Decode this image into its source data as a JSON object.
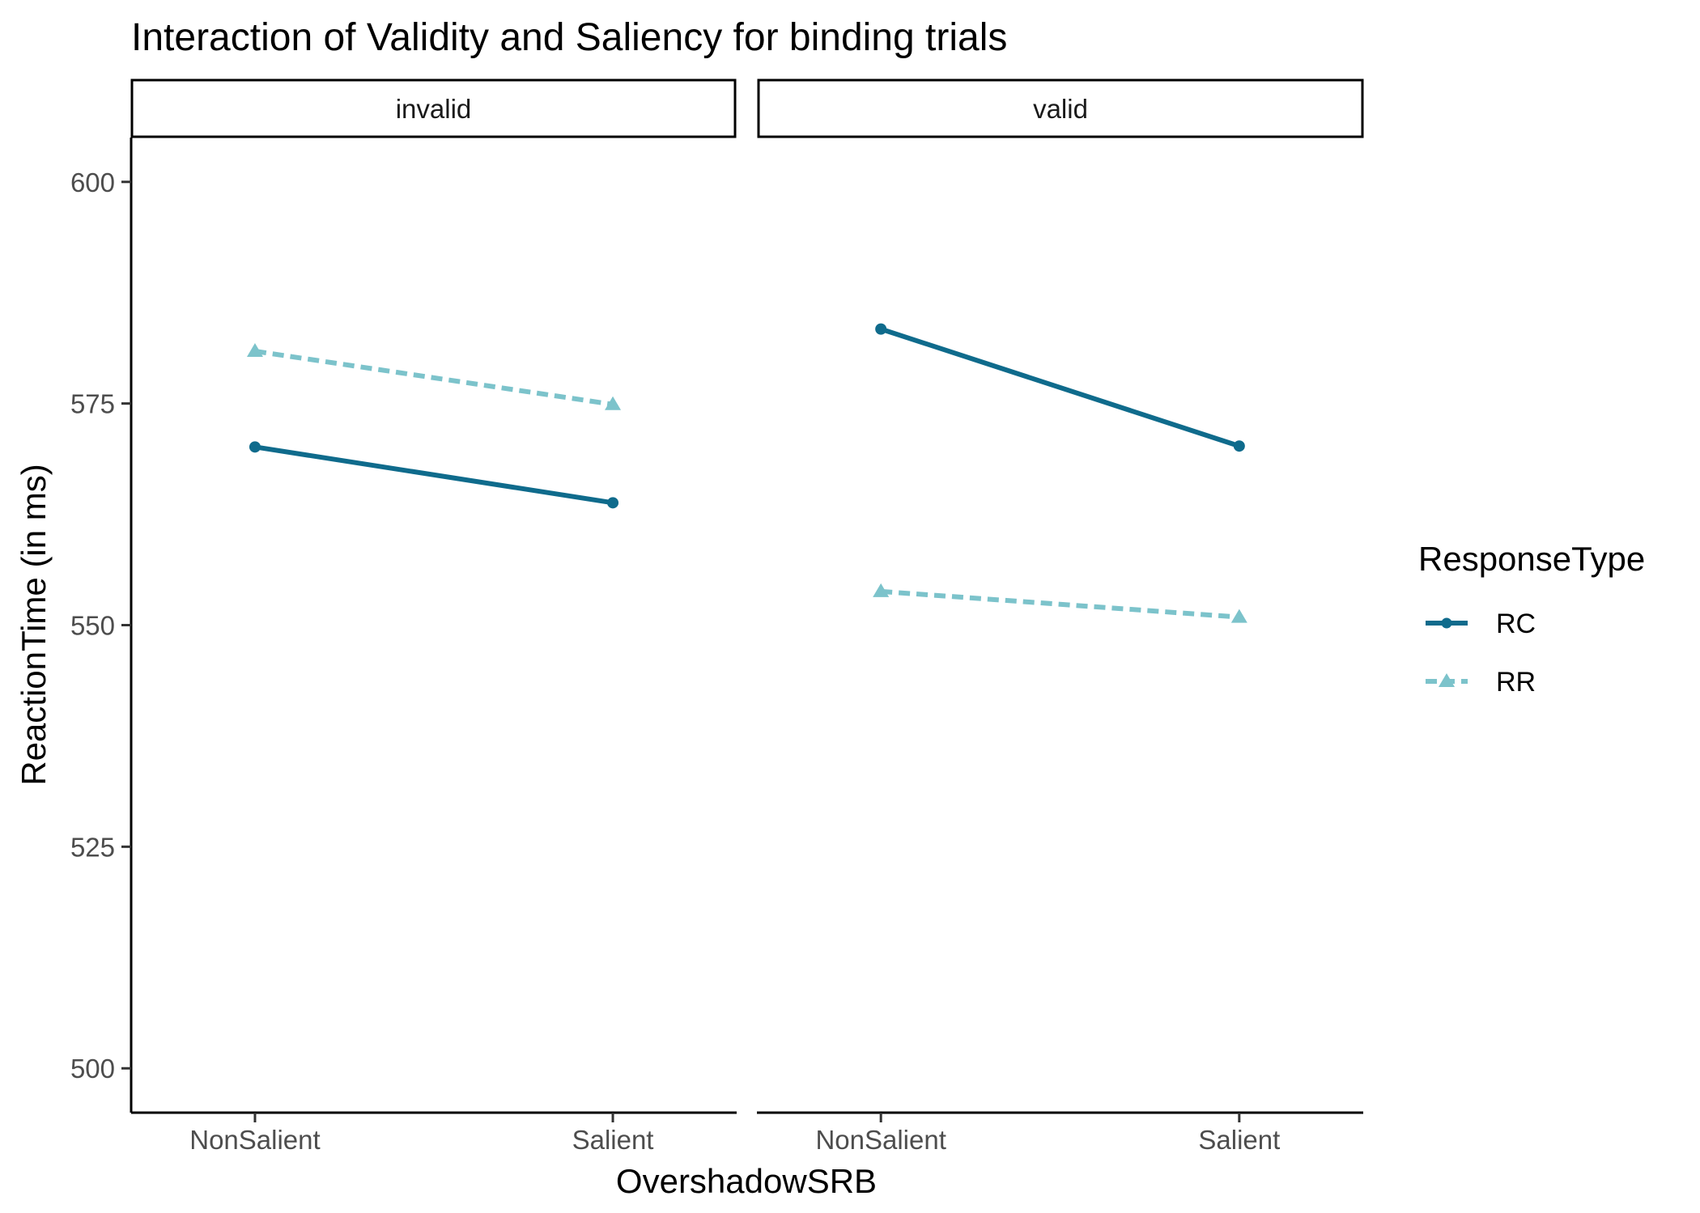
{
  "chart_data": {
    "type": "line",
    "title": "Interaction of Validity and Saliency for binding trials",
    "xlabel": "OvershadowSRB",
    "ylabel": "ReactionTime (in ms)",
    "ylim": [
      495,
      605
    ],
    "yticks": [
      "500",
      "525",
      "550",
      "575",
      "600"
    ],
    "categories": [
      "NonSalient",
      "Salient"
    ],
    "legend": {
      "title": "ResponseType",
      "position": "right",
      "entries": [
        "RC",
        "RR"
      ]
    },
    "colors": {
      "RC": "#0f6b8c",
      "RR": "#7cc3cb"
    },
    "panels": [
      {
        "label": "invalid",
        "series": [
          {
            "name": "RC",
            "values": [
              570.1,
              563.8
            ]
          },
          {
            "name": "RR",
            "values": [
              580.9,
              574.9
            ]
          }
        ]
      },
      {
        "label": "valid",
        "series": [
          {
            "name": "RC",
            "values": [
              583.4,
              570.2
            ]
          },
          {
            "name": "RR",
            "values": [
              553.8,
              550.9
            ]
          }
        ]
      }
    ]
  }
}
